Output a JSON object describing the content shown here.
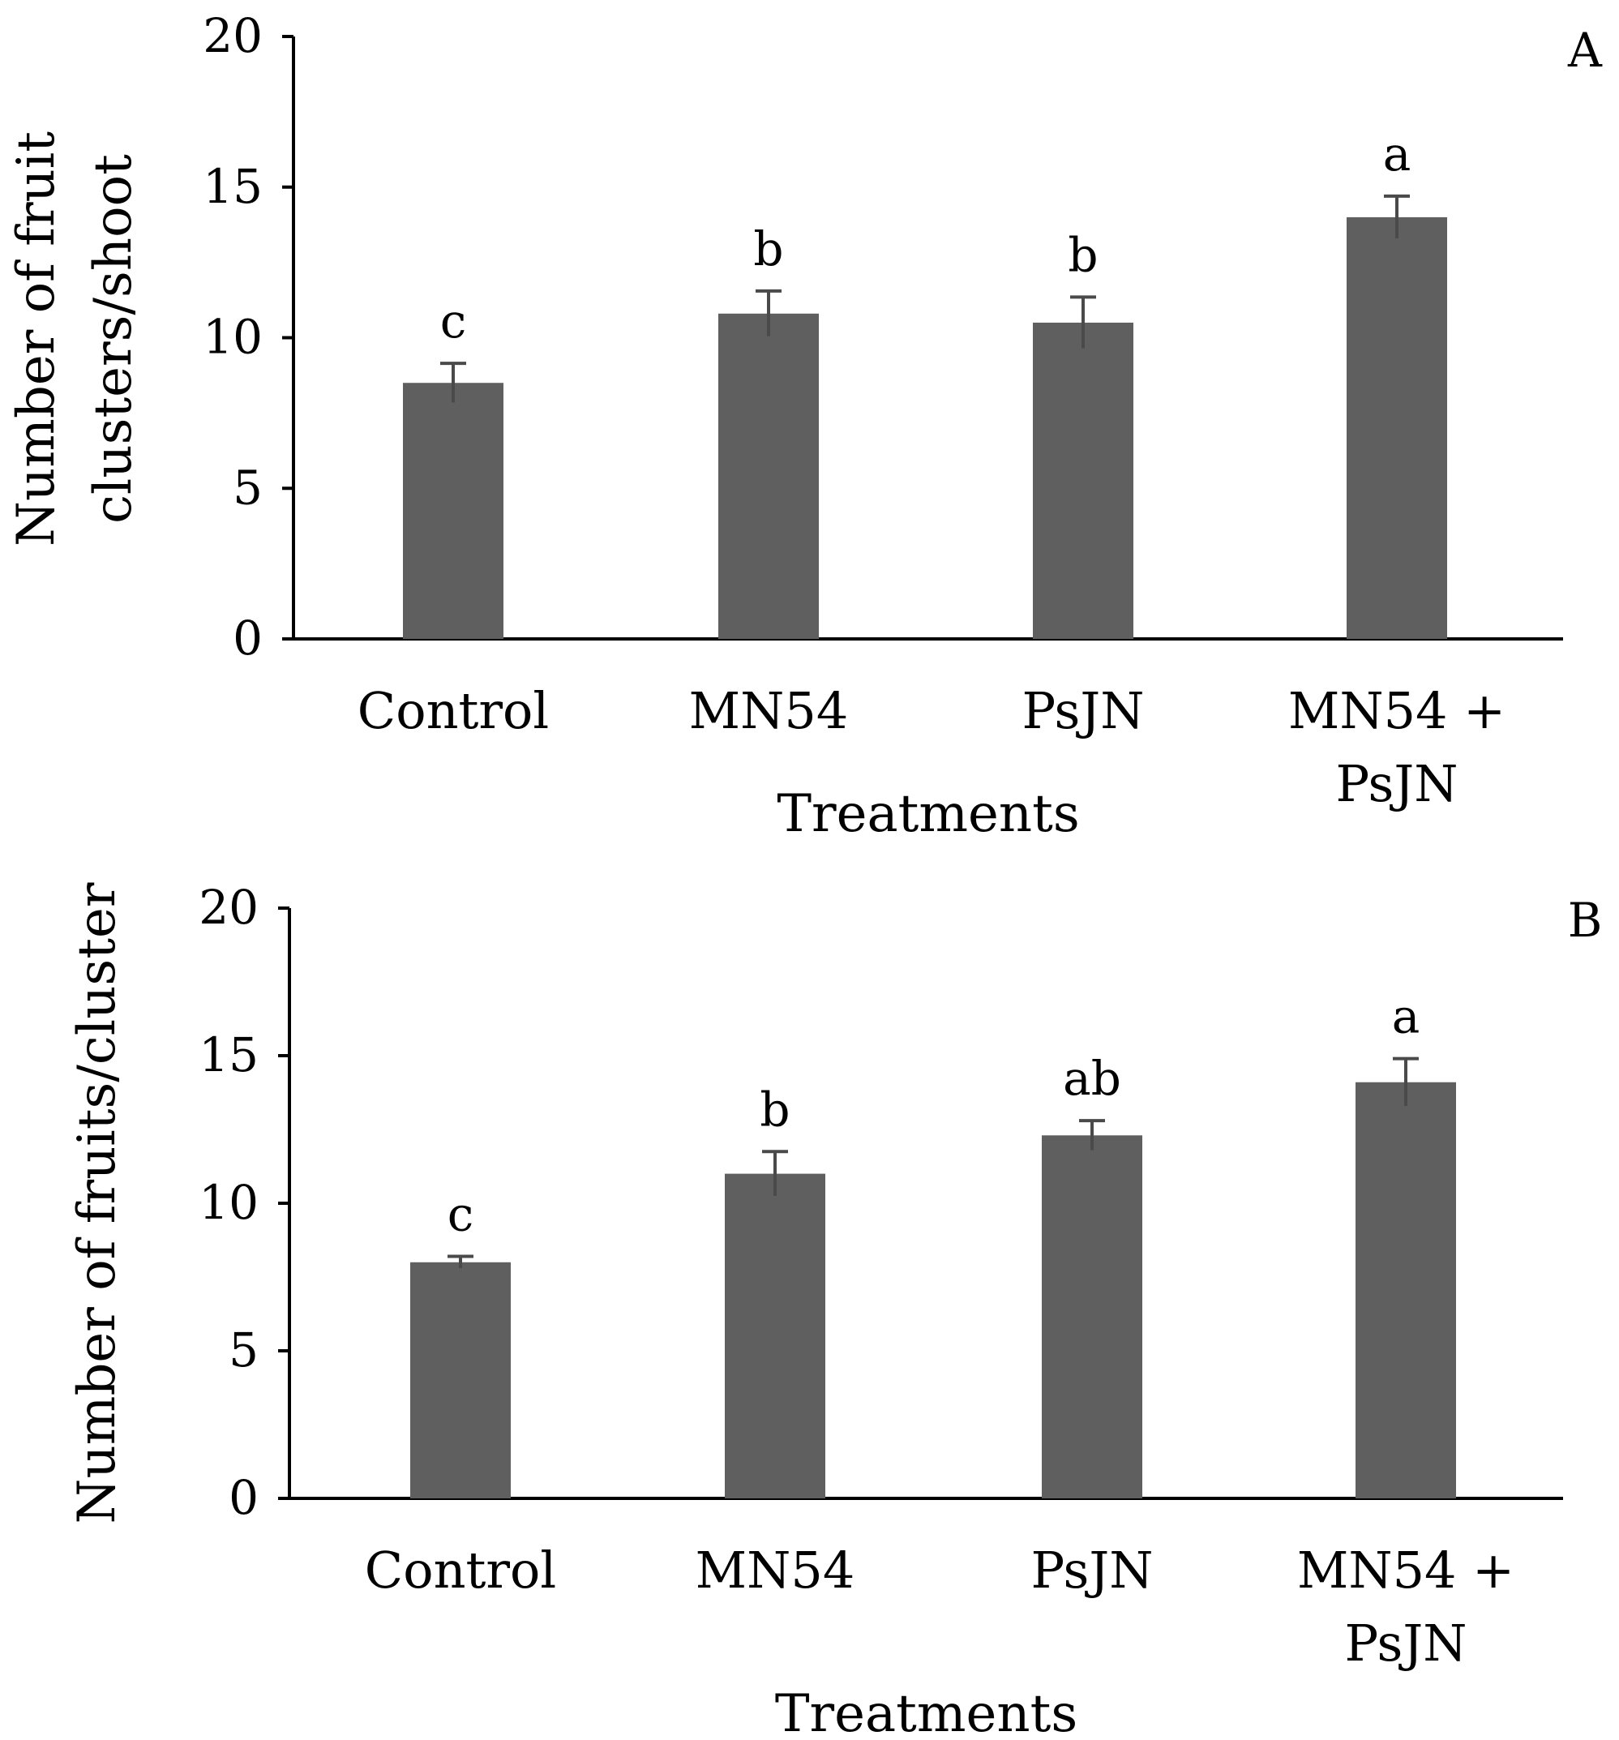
{
  "colors": {
    "bar": "#5f5f5f",
    "error_bar": "#4a4a4a",
    "axis": "#000000",
    "background": "#ffffff"
  },
  "chart_data": [
    {
      "type": "bar",
      "panel_label": "A",
      "categories": [
        "Control",
        "MN54",
        "PsJN",
        "MN54 + PsJN"
      ],
      "category_lines": [
        [
          "Control"
        ],
        [
          "MN54"
        ],
        [
          "PsJN"
        ],
        [
          "MN54 +",
          "PsJN"
        ]
      ],
      "values": [
        8.5,
        10.8,
        10.5,
        14.0
      ],
      "errors": [
        0.65,
        0.75,
        0.85,
        0.7
      ],
      "significance_letters": [
        "c",
        "b",
        "b",
        "a"
      ],
      "xlabel": "Treatments",
      "ylabel": "Number of fruit clusters/shoot",
      "ylabel_lines": [
        "Number of fruit",
        "clusters/shoot"
      ],
      "yticks": [
        0,
        5,
        10,
        15,
        20
      ],
      "ylim": [
        0,
        20
      ],
      "grid": false,
      "legend": "none"
    },
    {
      "type": "bar",
      "panel_label": "B",
      "categories": [
        "Control",
        "MN54",
        "PsJN",
        "MN54 + PsJN"
      ],
      "category_lines": [
        [
          "Control"
        ],
        [
          "MN54"
        ],
        [
          "PsJN"
        ],
        [
          "MN54 +",
          "PsJN"
        ]
      ],
      "values": [
        8.0,
        11.0,
        12.3,
        14.1
      ],
      "errors": [
        0.2,
        0.75,
        0.5,
        0.8
      ],
      "significance_letters": [
        "c",
        "b",
        "ab",
        "a"
      ],
      "xlabel": "Treatments",
      "ylabel": "Number of fruits/cluster",
      "ylabel_lines": [
        "Number of fruits/cluster"
      ],
      "yticks": [
        0,
        5,
        10,
        15,
        20
      ],
      "ylim": [
        0,
        20
      ],
      "grid": false,
      "legend": "none"
    }
  ]
}
